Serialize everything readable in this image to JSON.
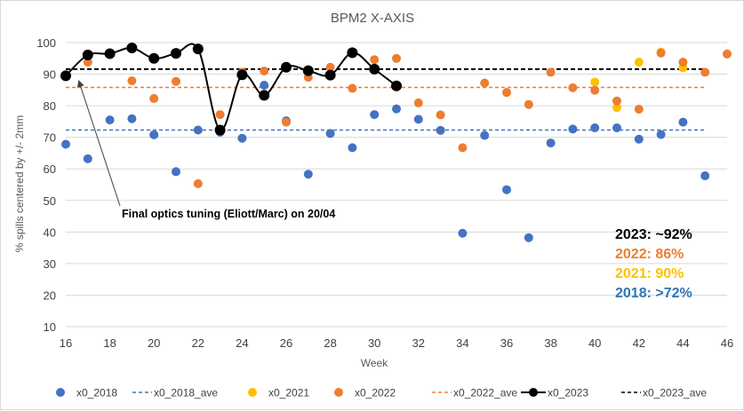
{
  "chart_data": {
    "type": "scatter",
    "title": "BPM2 X-AXIS",
    "xlabel": "Week",
    "ylabel": "% spills centered by +/- 2mm",
    "xlim": [
      16,
      46
    ],
    "ylim": [
      10,
      100
    ],
    "x_ticks": [
      16,
      18,
      20,
      22,
      24,
      26,
      28,
      30,
      32,
      34,
      36,
      38,
      40,
      42,
      44,
      46
    ],
    "y_ticks": [
      10,
      20,
      30,
      40,
      50,
      60,
      70,
      80,
      90,
      100
    ],
    "grid": "horizontal",
    "legend_position": "bottom",
    "series": [
      {
        "name": "x0_2018",
        "kind": "markers",
        "color": "#4472C4",
        "points": [
          [
            16,
            67.8
          ],
          [
            17,
            63.2
          ],
          [
            18,
            75.5
          ],
          [
            19,
            75.9
          ],
          [
            20,
            70.8
          ],
          [
            21,
            59.1
          ],
          [
            22,
            72.3
          ],
          [
            23,
            71.6
          ],
          [
            24,
            69.7
          ],
          [
            25,
            86.5
          ],
          [
            26,
            75.2
          ],
          [
            27,
            58.3
          ],
          [
            28,
            71.2
          ],
          [
            29,
            66.7
          ],
          [
            30,
            77.2
          ],
          [
            31,
            79.0
          ],
          [
            32,
            75.7
          ],
          [
            33,
            72.2
          ],
          [
            34,
            39.6
          ],
          [
            35,
            70.6
          ],
          [
            36,
            53.4
          ],
          [
            37,
            38.2
          ],
          [
            38,
            68.2
          ],
          [
            39,
            72.6
          ],
          [
            40,
            73.0
          ],
          [
            41,
            73.0
          ],
          [
            42,
            69.4
          ],
          [
            43,
            70.9
          ],
          [
            44,
            74.8
          ],
          [
            45,
            57.8
          ]
        ]
      },
      {
        "name": "x0_2018_ave",
        "kind": "dashed",
        "color": "#4472C4",
        "points": [
          [
            16,
            72.3
          ],
          [
            45,
            72.3
          ]
        ]
      },
      {
        "name": "x0_2021",
        "kind": "markers",
        "color": "#FFC000",
        "points": [
          [
            40,
            87.5
          ],
          [
            41,
            79.4
          ],
          [
            42,
            93.8
          ],
          [
            43,
            97.0
          ],
          [
            44,
            92.0
          ]
        ]
      },
      {
        "name": "x0_2022",
        "kind": "markers",
        "color": "#ED7D31",
        "points": [
          [
            17,
            93.8
          ],
          [
            18,
            96.2
          ],
          [
            19,
            87.9
          ],
          [
            20,
            82.3
          ],
          [
            21,
            87.7
          ],
          [
            22,
            55.3
          ],
          [
            23,
            77.2
          ],
          [
            24,
            90.6
          ],
          [
            25,
            91.0
          ],
          [
            26,
            74.8
          ],
          [
            27,
            89.0
          ],
          [
            28,
            92.2
          ],
          [
            29,
            85.5
          ],
          [
            30,
            94.6
          ],
          [
            31,
            95.0
          ],
          [
            32,
            80.9
          ],
          [
            33,
            77.1
          ],
          [
            34,
            66.7
          ],
          [
            35,
            87.2
          ],
          [
            36,
            84.2
          ],
          [
            37,
            80.4
          ],
          [
            38,
            90.6
          ],
          [
            39,
            85.7
          ],
          [
            40,
            84.9
          ],
          [
            41,
            81.5
          ],
          [
            42,
            78.9
          ],
          [
            43,
            96.7
          ],
          [
            44,
            93.8
          ],
          [
            45,
            90.6
          ],
          [
            46,
            96.4
          ]
        ]
      },
      {
        "name": "x0_2022_ave",
        "kind": "dashed",
        "color": "#ED7D31",
        "points": [
          [
            16,
            85.8
          ],
          [
            45,
            85.8
          ]
        ]
      },
      {
        "name": "x0_2023",
        "kind": "line-markers",
        "color": "#000000",
        "points": [
          [
            16,
            89.5
          ],
          [
            17,
            96.1
          ],
          [
            18,
            96.5
          ],
          [
            19,
            98.3
          ],
          [
            20,
            95.0
          ],
          [
            21,
            96.6
          ],
          [
            22,
            98.0
          ],
          [
            23,
            72.3
          ],
          [
            24,
            89.8
          ],
          [
            25,
            83.3
          ],
          [
            26,
            92.2
          ],
          [
            27,
            91.1
          ],
          [
            28,
            89.7
          ],
          [
            29,
            96.8
          ],
          [
            30,
            91.6
          ],
          [
            31,
            86.3
          ]
        ]
      },
      {
        "name": "x0_2023_ave",
        "kind": "dashed",
        "color": "#000000",
        "points": [
          [
            16,
            91.6
          ],
          [
            45,
            91.6
          ]
        ]
      }
    ],
    "annotation": {
      "text": "Final optics tuning (Eliott/Marc) on 20/04",
      "arrow_to": [
        16.4,
        88.2
      ]
    },
    "stats": [
      {
        "text": "2023: ~92%",
        "color": "#000000"
      },
      {
        "text": "2022: 86%",
        "color": "#ED7D31"
      },
      {
        "text": "2021: 90%",
        "color": "#FFC000"
      },
      {
        "text": "2018: >72%",
        "color": "#2E75B6"
      }
    ]
  }
}
